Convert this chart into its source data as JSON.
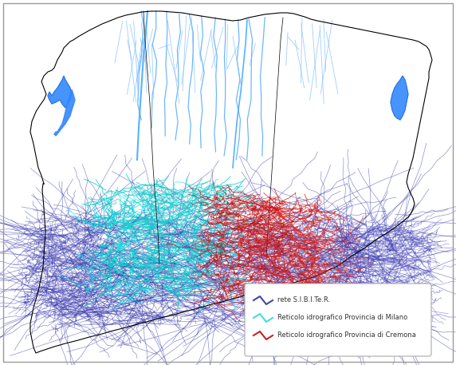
{
  "background_color": "#ffffff",
  "outer_border_color": "#999999",
  "legend_entries": [
    {
      "label": "rete S.I.B.I.Te.R.",
      "color": "#4444aa",
      "lw": 1.0
    },
    {
      "label": "Reticolo idrografico Provincia di Milano",
      "color": "#44dddd",
      "lw": 1.2
    },
    {
      "label": "Reticolo idrografico Provincia di Cremona",
      "color": "#cc2222",
      "lw": 1.2
    }
  ],
  "fig_width": 5.72,
  "fig_height": 4.57,
  "dpi": 100,
  "seed": 42
}
